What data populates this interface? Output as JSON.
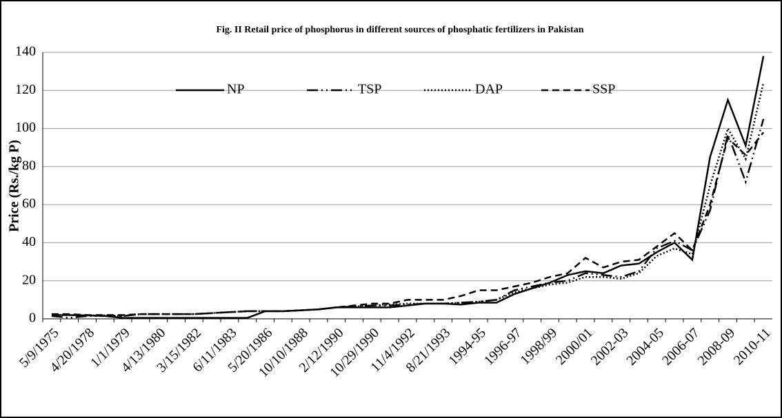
{
  "chart_data": {
    "type": "line",
    "title": "Fig. II Retail price of phosphorus in different sources of phosphatic fertilizers in Pakistan",
    "y_label": "Price (Rs./kg P)",
    "categories": [
      "5/9/1975",
      null,
      "4/20/1978",
      null,
      "1/1/1979",
      null,
      "4/13/1980",
      null,
      "3/15/1982",
      null,
      "6/11/1983",
      null,
      "5/20/1986",
      null,
      "10/10/1988",
      null,
      "2/12/1990",
      null,
      "10/29/1990",
      null,
      "11/4/1992",
      null,
      "8/21/1993",
      null,
      "1994-95",
      null,
      "1996-97",
      null,
      "1998/99",
      null,
      "2000/01",
      null,
      "2002-03",
      null,
      "2004-05",
      null,
      "2006-07",
      null,
      "2008-09",
      null,
      "2010-11"
    ],
    "series": [
      {
        "name": "NP",
        "color": "#000000",
        "dash": "solid",
        "values": [
          2,
          2,
          1.8,
          1.5,
          0.5,
          0.5,
          0.5,
          0.5,
          0.5,
          0.5,
          0.5,
          0.5,
          4,
          4,
          4.5,
          5,
          6,
          6,
          6,
          6,
          7,
          8,
          8,
          7.5,
          8.5,
          8.5,
          13,
          16,
          19,
          23,
          25,
          24,
          28,
          29,
          35,
          40,
          31,
          85,
          115,
          91,
          138
        ]
      },
      {
        "name": "TSP",
        "color": "#000000",
        "dash": "dash-dot-dot",
        "values": [
          1.5,
          0.5,
          1.5,
          1.5,
          1.5,
          2.5,
          2.5,
          2.5,
          2.5,
          3,
          3.5,
          4,
          4,
          4,
          4.5,
          5,
          6,
          6.5,
          7,
          7,
          7.5,
          8,
          8,
          8.5,
          9,
          10,
          15,
          17,
          19,
          20,
          24,
          23,
          22,
          25,
          37,
          41,
          36,
          57,
          97,
          72,
          105
        ]
      },
      {
        "name": "DAP",
        "color": "#000000",
        "dash": "dotted",
        "values": [
          2,
          2,
          1.8,
          1.8,
          1.5,
          2.5,
          2.5,
          2.5,
          2.5,
          3,
          3.5,
          4,
          4,
          4,
          4.5,
          5,
          6,
          6.5,
          7,
          7.5,
          8,
          8,
          8,
          8.5,
          9,
          10,
          14,
          16,
          18,
          19,
          22,
          22,
          21,
          24,
          33,
          37,
          34,
          70,
          100,
          84,
          124
        ]
      },
      {
        "name": "SSP",
        "color": "#000000",
        "dash": "dashed",
        "values": [
          2.5,
          2.5,
          2,
          2,
          2,
          2.5,
          2.5,
          2.5,
          2.5,
          3,
          3.5,
          4,
          4,
          4,
          4.5,
          5,
          6,
          7,
          8,
          8,
          10,
          10,
          10,
          12,
          15,
          15,
          17,
          19,
          22,
          24,
          32,
          27,
          30,
          31,
          38,
          45,
          36,
          60,
          95,
          86,
          98
        ]
      }
    ],
    "ylim": [
      0,
      140
    ],
    "yticks": [
      0,
      20,
      40,
      60,
      80,
      100,
      120,
      140
    ],
    "grid": true,
    "legend": "top"
  }
}
